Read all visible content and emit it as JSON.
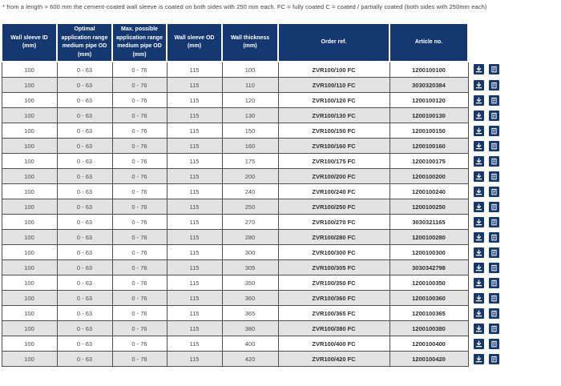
{
  "note": "* from a length > 600 mm the cement-coated wall sleeve is coated on both sides with 250 mm each. FC = fully coated C = coated / partially coated (both sides with 250mm each)",
  "colors": {
    "header_bg": "#14386f",
    "row_alt_bg": "#e3e3e3",
    "body_border": "#4f4f4f",
    "icon_button_bg": "#14386f",
    "header_text": "#ffffff"
  },
  "table": {
    "columns": [
      {
        "key": "wall-sleeve-id",
        "label": "Wall sleeve ID (mm)"
      },
      {
        "key": "optimal-range",
        "label": "Optimal application range medium pipe OD (mm)"
      },
      {
        "key": "max-range",
        "label": "Max. possible application range medium pipe OD (mm)"
      },
      {
        "key": "wall-sleeve-od",
        "label": "Wall sleeve OD (mm)"
      },
      {
        "key": "wall-thickness",
        "label": "Wall thickness (mm)"
      },
      {
        "key": "order-ref",
        "label": "Order ref."
      },
      {
        "key": "article-no",
        "label": "Article no."
      }
    ],
    "bold_columns": [
      5,
      6
    ],
    "row_actions": [
      {
        "name": "download-button",
        "icon": "download-icon"
      },
      {
        "name": "datasheet-button",
        "icon": "clipboard-icon"
      }
    ],
    "rows": [
      [
        "100",
        "0 - 63",
        "0 - 76",
        "115",
        "100",
        "ZVR100/100 FC",
        "1200100100"
      ],
      [
        "100",
        "0 - 63",
        "0 - 76",
        "115",
        "110",
        "ZVR100/110 FC",
        "3030320384"
      ],
      [
        "100",
        "0 - 63",
        "0 - 76",
        "115",
        "120",
        "ZVR100/120 FC",
        "1200100120"
      ],
      [
        "100",
        "0 - 63",
        "0 - 76",
        "115",
        "130",
        "ZVR100/130 FC",
        "1200100130"
      ],
      [
        "100",
        "0 - 63",
        "0 - 76",
        "115",
        "150",
        "ZVR100/150 FC",
        "1200100150"
      ],
      [
        "100",
        "0 - 63",
        "0 - 76",
        "115",
        "160",
        "ZVR100/160 FC",
        "1200100160"
      ],
      [
        "100",
        "0 - 63",
        "0 - 76",
        "115",
        "175",
        "ZVR100/175 FC",
        "1200100175"
      ],
      [
        "100",
        "0 - 63",
        "0 - 76",
        "115",
        "200",
        "ZVR100/200 FC",
        "1200100200"
      ],
      [
        "100",
        "0 - 63",
        "0 - 76",
        "115",
        "240",
        "ZVR100/240 FC",
        "1200100240"
      ],
      [
        "100",
        "0 - 63",
        "0 - 76",
        "115",
        "250",
        "ZVR100/250 FC",
        "1200100250"
      ],
      [
        "100",
        "0 - 63",
        "0 - 76",
        "115",
        "270",
        "ZVR100/270 FC",
        "3030321165"
      ],
      [
        "100",
        "0 - 63",
        "0 - 76",
        "115",
        "280",
        "ZVR100/280 FC",
        "1200100280"
      ],
      [
        "100",
        "0 - 63",
        "0 - 76",
        "115",
        "300",
        "ZVR100/300 FC",
        "1200100300"
      ],
      [
        "100",
        "0 - 63",
        "0 - 76",
        "115",
        "305",
        "ZVR100/305 FC",
        "3030342798"
      ],
      [
        "100",
        "0 - 63",
        "0 - 76",
        "115",
        "350",
        "ZVR100/350 FC",
        "1200100350"
      ],
      [
        "100",
        "0 - 63",
        "0 - 76",
        "115",
        "360",
        "ZVR100/360 FC",
        "1200100360"
      ],
      [
        "100",
        "0 - 63",
        "0 - 76",
        "115",
        "365",
        "ZVR100/365 FC",
        "1200100365"
      ],
      [
        "100",
        "0 - 63",
        "0 - 76",
        "115",
        "380",
        "ZVR100/380 FC",
        "1200100380"
      ],
      [
        "100",
        "0 - 63",
        "0 - 76",
        "115",
        "400",
        "ZVR100/400 FC",
        "1200100400"
      ],
      [
        "100",
        "0 - 63",
        "0 - 76",
        "115",
        "420",
        "ZVR100/420 FC",
        "1200100420"
      ]
    ]
  }
}
